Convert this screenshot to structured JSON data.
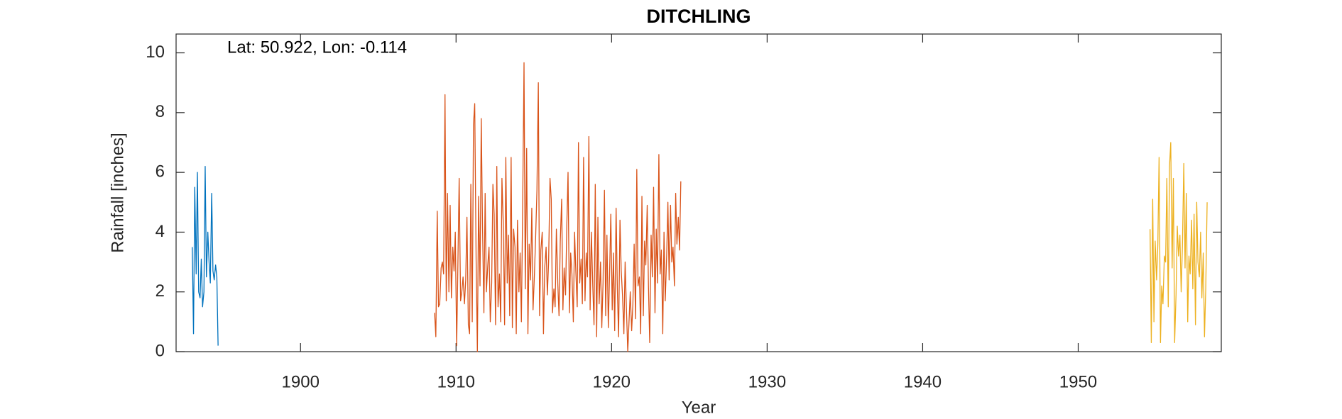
{
  "chart_data": {
    "type": "line",
    "title": "DITCHLING",
    "annotation": "Lat: 50.922, Lon: -0.114",
    "xlabel": "Year",
    "ylabel": "Rainfall [inches]",
    "xlim": [
      1892,
      1959.2
    ],
    "ylim": [
      0,
      10.63
    ],
    "xticks": [
      1900,
      1910,
      1920,
      1930,
      1940,
      1950
    ],
    "yticks": [
      0,
      2,
      4,
      6,
      8,
      10
    ],
    "series": [
      {
        "color": "#0072BD",
        "x": [
          1893.04,
          1893.12,
          1893.2,
          1893.29,
          1893.37,
          1893.45,
          1893.54,
          1893.62,
          1893.7,
          1893.79,
          1893.87,
          1893.95,
          1894.04,
          1894.12,
          1894.2,
          1894.29,
          1894.37,
          1894.45,
          1894.54,
          1894.62,
          1894.7
        ],
        "values": [
          3.5,
          0.6,
          5.5,
          2.6,
          6.0,
          2.0,
          1.8,
          3.1,
          1.5,
          2.0,
          6.2,
          2.5,
          4.0,
          3.0,
          2.3,
          5.3,
          2.7,
          2.4,
          2.9,
          2.5,
          0.2
        ]
      },
      {
        "color": "#D95319",
        "x": [
          1908.62,
          1908.7,
          1908.79,
          1908.87,
          1908.95,
          1909.04,
          1909.12,
          1909.2,
          1909.29,
          1909.37,
          1909.45,
          1909.54,
          1909.62,
          1909.7,
          1909.79,
          1909.87,
          1909.95,
          1910.04,
          1910.12,
          1910.2,
          1910.29,
          1910.37,
          1910.45,
          1910.54,
          1910.62,
          1910.7,
          1910.79,
          1910.87,
          1910.95,
          1911.04,
          1911.12,
          1911.2,
          1911.29,
          1911.37,
          1911.45,
          1911.54,
          1911.62,
          1911.7,
          1911.79,
          1911.87,
          1911.95,
          1912.04,
          1912.12,
          1912.2,
          1912.29,
          1912.37,
          1912.45,
          1912.54,
          1912.62,
          1912.7,
          1912.79,
          1912.87,
          1912.95,
          1913.04,
          1913.12,
          1913.2,
          1913.29,
          1913.37,
          1913.45,
          1913.54,
          1913.62,
          1913.7,
          1913.79,
          1913.87,
          1913.95,
          1914.04,
          1914.12,
          1914.2,
          1914.29,
          1914.37,
          1914.45,
          1914.54,
          1914.62,
          1914.7,
          1914.79,
          1914.87,
          1914.95,
          1915.04,
          1915.12,
          1915.2,
          1915.29,
          1915.37,
          1915.45,
          1915.54,
          1915.62,
          1915.7,
          1915.79,
          1915.87,
          1915.95,
          1916.04,
          1916.12,
          1916.2,
          1916.29,
          1916.37,
          1916.45,
          1916.54,
          1916.62,
          1916.7,
          1916.79,
          1916.87,
          1916.95,
          1917.04,
          1917.12,
          1917.2,
          1917.29,
          1917.37,
          1917.45,
          1917.54,
          1917.62,
          1917.7,
          1917.79,
          1917.87,
          1917.95,
          1918.04,
          1918.12,
          1918.2,
          1918.29,
          1918.37,
          1918.45,
          1918.54,
          1918.62,
          1918.7,
          1918.79,
          1918.87,
          1918.95,
          1919.04,
          1919.12,
          1919.2,
          1919.29,
          1919.37,
          1919.45,
          1919.54,
          1919.62,
          1919.7,
          1919.79,
          1919.87,
          1919.95,
          1920.04,
          1920.12,
          1920.2,
          1920.29,
          1920.37,
          1920.45,
          1920.54,
          1920.62,
          1920.7,
          1920.79,
          1920.87,
          1920.95,
          1921.04,
          1921.12,
          1921.2,
          1921.29,
          1921.37,
          1921.45,
          1921.54,
          1921.62,
          1921.7,
          1921.79,
          1921.87,
          1921.95,
          1922.04,
          1922.12,
          1922.2,
          1922.29,
          1922.37,
          1922.45,
          1922.54,
          1922.62,
          1922.7,
          1922.79,
          1922.87,
          1922.95,
          1923.04,
          1923.12,
          1923.2,
          1923.29,
          1923.37,
          1923.45,
          1923.54,
          1923.62,
          1923.7,
          1923.79,
          1923.87,
          1923.95,
          1924.04,
          1924.12,
          1924.2,
          1924.29,
          1924.37,
          1924.45
        ],
        "values": [
          1.3,
          0.5,
          4.7,
          1.5,
          1.6,
          2.8,
          3.0,
          2.6,
          8.6,
          1.7,
          5.3,
          2.0,
          4.9,
          1.8,
          3.5,
          2.7,
          4.0,
          0.2,
          3.0,
          5.8,
          1.7,
          2.0,
          2.5,
          1.6,
          2.4,
          4.5,
          0.9,
          0.6,
          5.6,
          1.0,
          7.6,
          8.3,
          3.1,
          0.0,
          5.2,
          2.2,
          7.8,
          4.2,
          1.3,
          5.3,
          2.0,
          2.9,
          3.5,
          1.0,
          2.3,
          5.6,
          4.6,
          0.9,
          6.2,
          1.5,
          2.6,
          1.0,
          5.8,
          4.2,
          0.9,
          6.5,
          2.3,
          3.9,
          1.2,
          6.5,
          0.8,
          4.1,
          3.5,
          0.6,
          4.4,
          2.0,
          3.3,
          1.0,
          5.2,
          9.67,
          2.1,
          6.8,
          0.6,
          3.6,
          2.4,
          4.8,
          1.4,
          2.6,
          3.9,
          5.4,
          9.0,
          1.2,
          3.4,
          4.0,
          0.6,
          2.8,
          3.5,
          1.9,
          3.0,
          5.8,
          5.1,
          1.3,
          2.1,
          1.5,
          4.1,
          2.3,
          1.2,
          3.7,
          5.1,
          1.4,
          2.8,
          1.9,
          4.2,
          6.0,
          1.3,
          3.3,
          2.6,
          1.0,
          4.0,
          2.7,
          1.5,
          7.0,
          2.3,
          3.1,
          1.6,
          6.5,
          1.7,
          3.3,
          2.5,
          7.2,
          1.4,
          4.0,
          2.2,
          0.9,
          5.6,
          0.5,
          4.5,
          1.6,
          3.0,
          0.8,
          2.3,
          5.4,
          1.2,
          3.9,
          0.8,
          2.6,
          4.6,
          1.4,
          3.3,
          0.7,
          4.8,
          2.1,
          0.5,
          4.4,
          2.7,
          1.9,
          0.6,
          3.0,
          1.5,
          0.0,
          1.0,
          2.0,
          0.7,
          1.6,
          3.6,
          1.1,
          6.1,
          2.2,
          2.5,
          0.6,
          5.2,
          1.2,
          3.7,
          2.9,
          4.9,
          2.2,
          0.3,
          3.9,
          2.5,
          5.5,
          1.3,
          4.1,
          2.3,
          6.6,
          2.6,
          3.4,
          0.6,
          4.0,
          1.7,
          3.2,
          5.0,
          2.4,
          4.9,
          3.0,
          3.5,
          2.2,
          5.3,
          3.6,
          4.5,
          3.4,
          5.7
        ]
      },
      {
        "color": "#EDB120",
        "x": [
          1954.62,
          1954.7,
          1954.79,
          1954.87,
          1954.95,
          1955.04,
          1955.12,
          1955.2,
          1955.29,
          1955.37,
          1955.45,
          1955.54,
          1955.62,
          1955.7,
          1955.79,
          1955.87,
          1955.95,
          1956.04,
          1956.12,
          1956.2,
          1956.29,
          1956.37,
          1956.45,
          1956.54,
          1956.62,
          1956.7,
          1956.79,
          1956.87,
          1956.95,
          1957.04,
          1957.12,
          1957.2,
          1957.29,
          1957.37,
          1957.45,
          1957.54,
          1957.62,
          1957.7,
          1957.79,
          1957.87,
          1957.95,
          1958.04,
          1958.12,
          1958.2,
          1958.29
        ],
        "values": [
          4.1,
          0.3,
          5.1,
          1.0,
          3.7,
          2.4,
          3.6,
          6.5,
          0.3,
          2.2,
          1.6,
          3.2,
          3.0,
          5.8,
          1.5,
          6.2,
          7.0,
          2.8,
          5.8,
          0.3,
          1.9,
          4.2,
          3.2,
          3.9,
          2.0,
          3.5,
          6.3,
          2.8,
          5.3,
          1.0,
          3.2,
          2.6,
          4.4,
          2.1,
          4.6,
          0.9,
          5.0,
          3.0,
          2.5,
          4.0,
          1.8,
          3.3,
          0.5,
          2.1,
          5.0
        ]
      }
    ]
  }
}
